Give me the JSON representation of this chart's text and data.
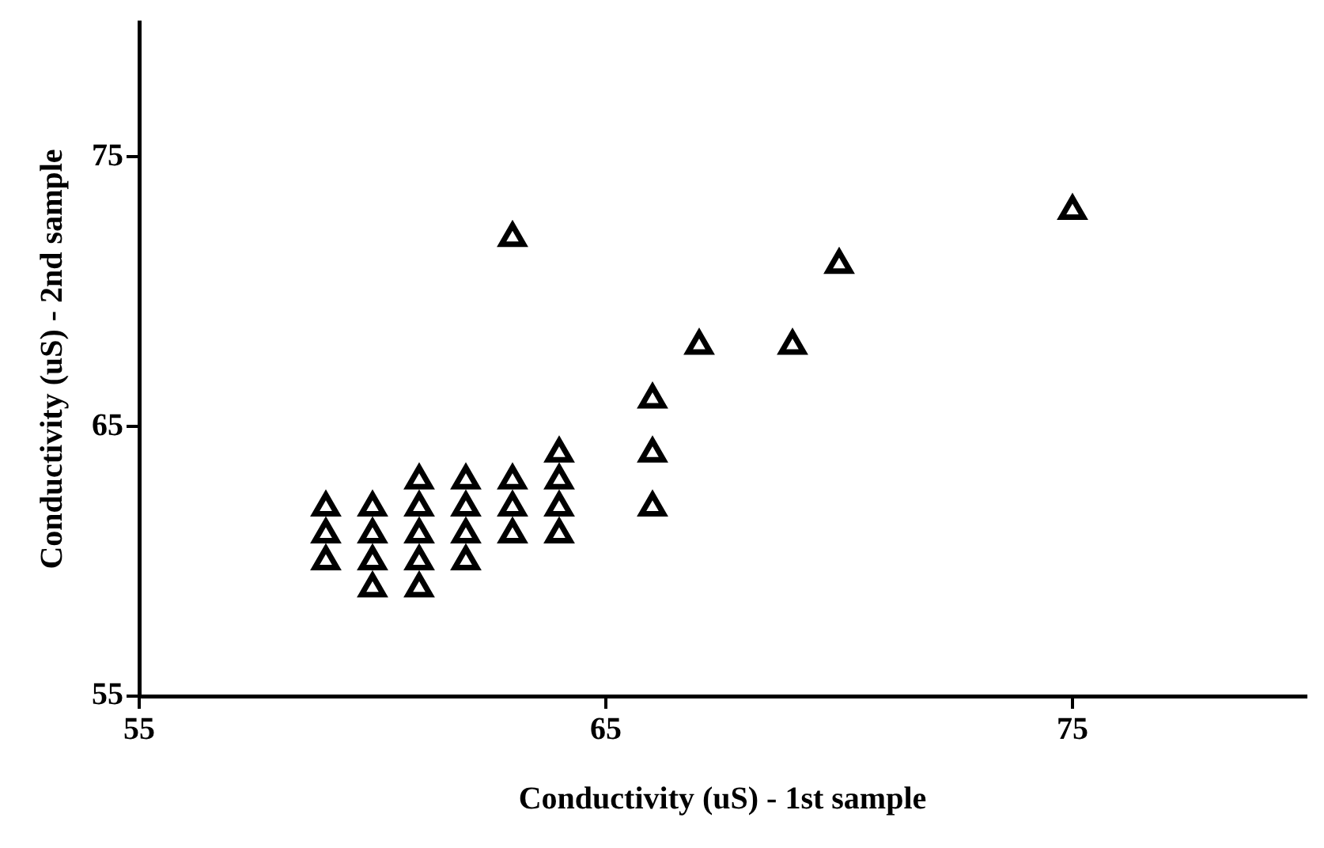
{
  "chart_data": {
    "type": "scatter",
    "xlabel": "Conductivity (uS) - 1st sample",
    "ylabel": "Conductivity (uS) - 2nd sample",
    "xlim": [
      55,
      80
    ],
    "xticks": [
      55,
      65,
      75
    ],
    "ylim": [
      55,
      80
    ],
    "yticks": [
      55,
      65,
      75
    ],
    "grid": false,
    "legend": false,
    "marker": "triangle",
    "series": [
      {
        "color": "#000000",
        "x": [
          59,
          59,
          59,
          60,
          60,
          60,
          60,
          61,
          61,
          61,
          61,
          61,
          62,
          62,
          62,
          62,
          63,
          63,
          63,
          63,
          64,
          64,
          64,
          64,
          66,
          66,
          66,
          67,
          69,
          70,
          75
        ],
        "values": [
          62,
          61,
          60,
          62,
          61,
          60,
          59,
          63,
          62,
          61,
          60,
          59,
          63,
          62,
          61,
          60,
          72,
          63,
          62,
          61,
          64,
          63,
          62,
          61,
          66,
          64,
          62,
          68,
          68,
          71,
          73
        ]
      }
    ]
  }
}
